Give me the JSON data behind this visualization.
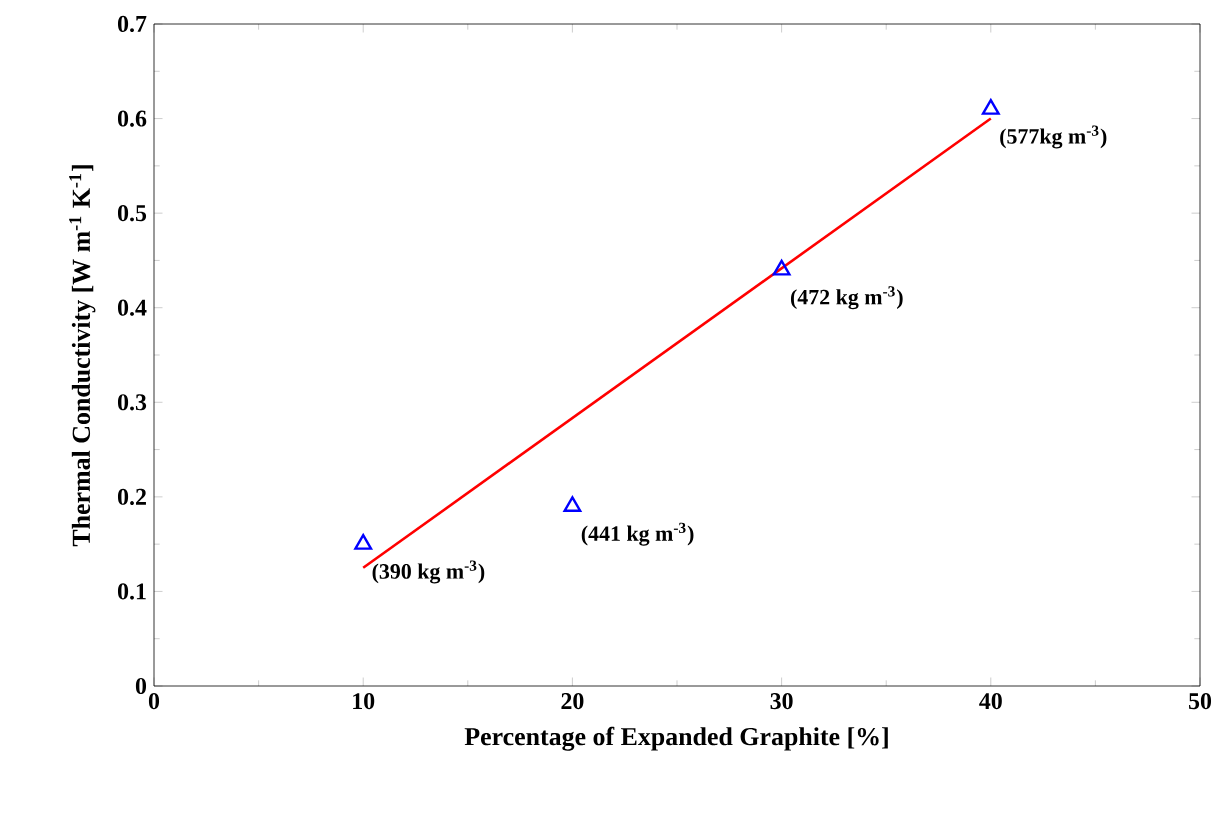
{
  "chart_data": {
    "type": "scatter",
    "xlabel": "Percentage of Expanded Graphite [%]",
    "ylabel": "Thermal Conductivity [W m$^{-1}$ K$^{-1}$]",
    "xlim": [
      0,
      50
    ],
    "xticks": [
      0,
      10,
      20,
      30,
      40,
      50
    ],
    "ylim": [
      0,
      0.7
    ],
    "yticks": [
      0,
      0.1,
      0.2,
      0.3,
      0.4,
      0.5,
      0.6,
      0.7
    ],
    "series": [
      {
        "marker": "triangle",
        "color": "#0000ff",
        "x": [
          10,
          20,
          30,
          40
        ],
        "values": [
          0.15,
          0.19,
          0.44,
          0.61
        ]
      },
      {
        "type": "line",
        "marker": "none",
        "color": "#ff0000",
        "x": [
          10,
          40
        ],
        "values": [
          0.125,
          0.6
        ]
      }
    ],
    "annotations": [
      {
        "text": "(390 kg m$^{-3}$)",
        "x": 10,
        "y": 0.15
      },
      {
        "text": "(441 kg m$^{-3}$)",
        "x": 20,
        "y": 0.19
      },
      {
        "text": "(472 kg m$^{-3}$)",
        "x": 30,
        "y": 0.44
      },
      {
        "text": "(577kg m$^{-3}$)",
        "x": 40,
        "y": 0.61
      }
    ]
  }
}
